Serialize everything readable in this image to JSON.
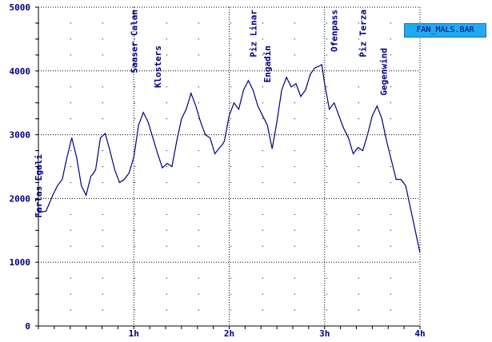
{
  "chart_data": {
    "type": "line",
    "title": "",
    "xlabel": "",
    "ylabel": "",
    "xlim": [
      0,
      4
    ],
    "ylim": [
      0,
      5000
    ],
    "x_ticks": [
      "1h",
      "2h",
      "3h",
      "4h"
    ],
    "y_ticks": [
      "0",
      "1000",
      "2000",
      "3000",
      "4000",
      "5000"
    ],
    "grid": "dotted",
    "legend_position": "top-right",
    "series": [
      {
        "name": "FAN_MALS.BAR",
        "color": "#000080",
        "x": [
          0,
          0.08,
          0.15,
          0.2,
          0.25,
          0.3,
          0.35,
          0.4,
          0.45,
          0.5,
          0.55,
          0.57,
          0.6,
          0.65,
          0.7,
          0.75,
          0.8,
          0.85,
          0.9,
          0.95,
          1.0,
          1.05,
          1.1,
          1.15,
          1.2,
          1.25,
          1.3,
          1.35,
          1.4,
          1.45,
          1.5,
          1.55,
          1.6,
          1.65,
          1.7,
          1.75,
          1.8,
          1.85,
          1.9,
          1.93,
          1.95,
          2.0,
          2.05,
          2.1,
          2.15,
          2.2,
          2.25,
          2.3,
          2.35,
          2.4,
          2.45,
          2.5,
          2.55,
          2.6,
          2.65,
          2.7,
          2.75,
          2.8,
          2.85,
          2.9,
          2.95,
          2.97,
          3.0,
          3.05,
          3.1,
          3.15,
          3.2,
          3.25,
          3.3,
          3.35,
          3.4,
          3.45,
          3.5,
          3.55,
          3.6,
          3.65,
          3.7,
          3.75,
          3.8,
          3.85,
          3.9,
          3.95,
          4.0
        ],
        "y": [
          1780,
          1800,
          2050,
          2200,
          2300,
          2650,
          2950,
          2650,
          2200,
          2050,
          2350,
          2380,
          2450,
          2950,
          3020,
          2750,
          2450,
          2250,
          2300,
          2400,
          2650,
          3150,
          3350,
          3200,
          2950,
          2700,
          2480,
          2550,
          2500,
          2900,
          3250,
          3400,
          3650,
          3450,
          3200,
          3000,
          2950,
          2700,
          2800,
          2850,
          2900,
          3300,
          3500,
          3400,
          3700,
          3850,
          3700,
          3450,
          3300,
          3150,
          2780,
          3200,
          3700,
          3900,
          3750,
          3800,
          3600,
          3700,
          3950,
          4050,
          4080,
          4100,
          3800,
          3400,
          3500,
          3300,
          3100,
          2950,
          2700,
          2800,
          2750,
          3000,
          3300,
          3450,
          3250,
          2900,
          2600,
          2300,
          2300,
          2200,
          1850,
          1500,
          1150
        ]
      }
    ],
    "annotations": [
      {
        "text": "Farlas Egali",
        "x": 0.0
      },
      {
        "text": "Saaser Calan",
        "x": 1.0
      },
      {
        "text": "Klosters",
        "x": 1.25
      },
      {
        "text": "Piz Linar",
        "x": 2.25
      },
      {
        "text": "Engadin",
        "x": 2.4
      },
      {
        "text": "Ofenpass",
        "x": 3.1
      },
      {
        "text": "Piz Terza",
        "x": 3.4
      },
      {
        "text": "Gegenwind",
        "x": 3.62
      }
    ]
  }
}
